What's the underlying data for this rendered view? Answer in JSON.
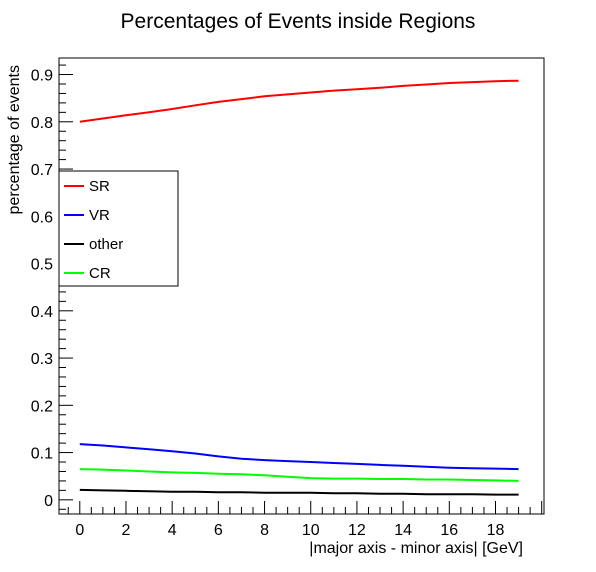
{
  "chart_data": {
    "type": "line",
    "title": "Percentages of Events inside Regions",
    "xlabel": "|major axis - minor axis| [GeV]",
    "ylabel": "percentage of events",
    "xlim": [
      -0.9,
      20.1
    ],
    "ylim": [
      -0.03,
      0.935
    ],
    "x_ticks": [
      0,
      2,
      4,
      6,
      8,
      10,
      12,
      14,
      16,
      18
    ],
    "x_tick_labels": [
      "0",
      "2",
      "4",
      "6",
      "8",
      "10",
      "12",
      "14",
      "16",
      "18"
    ],
    "y_ticks": [
      0,
      0.1,
      0.2,
      0.3,
      0.4,
      0.5,
      0.6,
      0.7,
      0.8,
      0.9
    ],
    "y_tick_labels": [
      "0",
      "0.1",
      "0.2",
      "0.3",
      "0.4",
      "0.5",
      "0.6",
      "0.7",
      "0.8",
      "0.9"
    ],
    "grid": false,
    "legend_position": "left, upper-middle",
    "x": [
      0,
      1,
      2,
      3,
      4,
      5,
      6,
      7,
      8,
      9,
      10,
      11,
      12,
      13,
      14,
      15,
      16,
      17,
      18,
      19
    ],
    "series": [
      {
        "name": "SR",
        "color": "#ff0000",
        "values": [
          0.8,
          0.807,
          0.814,
          0.82,
          0.827,
          0.835,
          0.842,
          0.848,
          0.854,
          0.858,
          0.862,
          0.866,
          0.869,
          0.872,
          0.876,
          0.879,
          0.882,
          0.884,
          0.886,
          0.887
        ]
      },
      {
        "name": "VR",
        "color": "#0000ff",
        "values": [
          0.118,
          0.115,
          0.111,
          0.107,
          0.103,
          0.098,
          0.092,
          0.087,
          0.084,
          0.082,
          0.08,
          0.078,
          0.076,
          0.074,
          0.072,
          0.07,
          0.068,
          0.067,
          0.066,
          0.065
        ]
      },
      {
        "name": "other",
        "color": "#000000",
        "values": [
          0.021,
          0.02,
          0.019,
          0.018,
          0.017,
          0.017,
          0.016,
          0.016,
          0.015,
          0.015,
          0.015,
          0.014,
          0.014,
          0.013,
          0.013,
          0.012,
          0.012,
          0.012,
          0.011,
          0.011
        ]
      },
      {
        "name": "CR",
        "color": "#00ff00",
        "values": [
          0.065,
          0.064,
          0.062,
          0.06,
          0.058,
          0.057,
          0.055,
          0.054,
          0.052,
          0.049,
          0.046,
          0.045,
          0.045,
          0.044,
          0.044,
          0.043,
          0.043,
          0.042,
          0.041,
          0.04
        ]
      }
    ]
  }
}
